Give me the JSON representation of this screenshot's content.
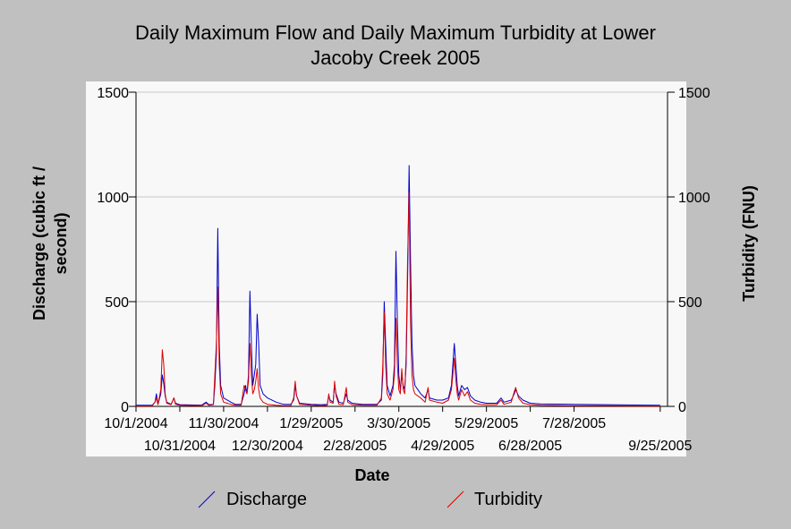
{
  "chart_data": {
    "type": "line",
    "title_lines": [
      "Daily Maximum Flow and Daily Maximum Turbidity at Lower",
      "Jacoby Creek 2005"
    ],
    "xlabel": "Date",
    "ylabel_left_lines": [
      "Discharge (cubic ft /",
      "second)"
    ],
    "ylabel_right": "Turbidity (FNU)",
    "x_start": "2004-10-01",
    "x_end": "2005-09-30",
    "x_ticks": [
      {
        "label": "10/1/2004",
        "date": "2004-10-01",
        "row": 0
      },
      {
        "label": "10/31/2004",
        "date": "2004-10-31",
        "row": 1
      },
      {
        "label": "11/30/2004",
        "date": "2004-11-30",
        "row": 0
      },
      {
        "label": "12/30/2004",
        "date": "2004-12-30",
        "row": 1
      },
      {
        "label": "1/29/2005",
        "date": "2005-01-29",
        "row": 0
      },
      {
        "label": "2/28/2005",
        "date": "2005-02-28",
        "row": 1
      },
      {
        "label": "3/30/2005",
        "date": "2005-03-30",
        "row": 0
      },
      {
        "label": "4/29/2005",
        "date": "2005-04-29",
        "row": 1
      },
      {
        "label": "5/29/2005",
        "date": "2005-05-29",
        "row": 0
      },
      {
        "label": "6/28/2005",
        "date": "2005-06-28",
        "row": 1
      },
      {
        "label": "7/28/2005",
        "date": "2005-07-28",
        "row": 0
      },
      {
        "label": "9/25/2005",
        "date": "2005-09-25",
        "row": 1
      }
    ],
    "y_left": {
      "min": 0,
      "max": 1500,
      "ticks": [
        0,
        500,
        1000,
        1500
      ]
    },
    "y_right": {
      "min": 0,
      "max": 1500,
      "ticks": [
        0,
        500,
        1000,
        1500
      ]
    },
    "grid": true,
    "legend_placement": "bottom",
    "series": [
      {
        "name": "Discharge",
        "color": "#0000cc",
        "axis": "left",
        "points": [
          [
            "2004-10-01",
            5
          ],
          [
            "2004-10-12",
            5
          ],
          [
            "2004-10-14",
            20
          ],
          [
            "2004-10-15",
            60
          ],
          [
            "2004-10-16",
            10
          ],
          [
            "2004-10-18",
            60
          ],
          [
            "2004-10-19",
            150
          ],
          [
            "2004-10-20",
            110
          ],
          [
            "2004-10-21",
            50
          ],
          [
            "2004-10-22",
            20
          ],
          [
            "2004-10-25",
            10
          ],
          [
            "2004-10-27",
            40
          ],
          [
            "2004-10-28",
            15
          ],
          [
            "2004-10-31",
            8
          ],
          [
            "2004-11-15",
            6
          ],
          [
            "2004-11-18",
            20
          ],
          [
            "2004-11-20",
            8
          ],
          [
            "2004-11-23",
            10
          ],
          [
            "2004-11-24",
            100
          ],
          [
            "2004-11-25",
            250
          ],
          [
            "2004-11-26",
            850
          ],
          [
            "2004-11-27",
            300
          ],
          [
            "2004-11-28",
            100
          ],
          [
            "2004-11-30",
            40
          ],
          [
            "2004-12-05",
            20
          ],
          [
            "2004-12-08",
            10
          ],
          [
            "2004-12-12",
            10
          ],
          [
            "2004-12-14",
            60
          ],
          [
            "2004-12-15",
            100
          ],
          [
            "2004-12-16",
            60
          ],
          [
            "2004-12-17",
            150
          ],
          [
            "2004-12-18",
            550
          ],
          [
            "2004-12-19",
            300
          ],
          [
            "2004-12-20",
            100
          ],
          [
            "2004-12-21",
            150
          ],
          [
            "2004-12-22",
            200
          ],
          [
            "2004-12-23",
            440
          ],
          [
            "2004-12-24",
            300
          ],
          [
            "2004-12-25",
            100
          ],
          [
            "2004-12-27",
            60
          ],
          [
            "2004-12-30",
            40
          ],
          [
            "2005-01-05",
            20
          ],
          [
            "2005-01-10",
            10
          ],
          [
            "2005-01-15",
            10
          ],
          [
            "2005-01-17",
            30
          ],
          [
            "2005-01-18",
            100
          ],
          [
            "2005-01-19",
            50
          ],
          [
            "2005-01-21",
            15
          ],
          [
            "2005-01-29",
            10
          ],
          [
            "2005-02-05",
            8
          ],
          [
            "2005-02-09",
            10
          ],
          [
            "2005-02-10",
            50
          ],
          [
            "2005-02-11",
            30
          ],
          [
            "2005-02-13",
            20
          ],
          [
            "2005-02-14",
            100
          ],
          [
            "2005-02-15",
            60
          ],
          [
            "2005-02-17",
            20
          ],
          [
            "2005-02-20",
            15
          ],
          [
            "2005-02-22",
            60
          ],
          [
            "2005-02-23",
            30
          ],
          [
            "2005-02-26",
            15
          ],
          [
            "2005-03-05",
            10
          ],
          [
            "2005-03-15",
            10
          ],
          [
            "2005-03-18",
            30
          ],
          [
            "2005-03-19",
            150
          ],
          [
            "2005-03-20",
            500
          ],
          [
            "2005-03-21",
            300
          ],
          [
            "2005-03-22",
            100
          ],
          [
            "2005-03-24",
            50
          ],
          [
            "2005-03-26",
            100
          ],
          [
            "2005-03-27",
            200
          ],
          [
            "2005-03-28",
            740
          ],
          [
            "2005-03-29",
            400
          ],
          [
            "2005-03-30",
            150
          ],
          [
            "2005-03-31",
            80
          ],
          [
            "2005-04-01",
            150
          ],
          [
            "2005-04-02",
            100
          ],
          [
            "2005-04-03",
            80
          ],
          [
            "2005-04-04",
            200
          ],
          [
            "2005-04-05",
            600
          ],
          [
            "2005-04-06",
            1150
          ],
          [
            "2005-04-07",
            700
          ],
          [
            "2005-04-08",
            300
          ],
          [
            "2005-04-09",
            150
          ],
          [
            "2005-04-10",
            100
          ],
          [
            "2005-04-12",
            80
          ],
          [
            "2005-04-14",
            60
          ],
          [
            "2005-04-17",
            40
          ],
          [
            "2005-04-19",
            80
          ],
          [
            "2005-04-20",
            40
          ],
          [
            "2005-04-25",
            30
          ],
          [
            "2005-04-29",
            30
          ],
          [
            "2005-05-03",
            40
          ],
          [
            "2005-05-05",
            100
          ],
          [
            "2005-05-06",
            200
          ],
          [
            "2005-05-07",
            300
          ],
          [
            "2005-05-08",
            200
          ],
          [
            "2005-05-09",
            100
          ],
          [
            "2005-05-10",
            50
          ],
          [
            "2005-05-12",
            100
          ],
          [
            "2005-05-14",
            80
          ],
          [
            "2005-05-16",
            90
          ],
          [
            "2005-05-18",
            50
          ],
          [
            "2005-05-21",
            30
          ],
          [
            "2005-05-25",
            20
          ],
          [
            "2005-05-29",
            15
          ],
          [
            "2005-06-05",
            15
          ],
          [
            "2005-06-08",
            40
          ],
          [
            "2005-06-10",
            20
          ],
          [
            "2005-06-15",
            30
          ],
          [
            "2005-06-17",
            60
          ],
          [
            "2005-06-18",
            80
          ],
          [
            "2005-06-20",
            50
          ],
          [
            "2005-06-23",
            30
          ],
          [
            "2005-06-28",
            15
          ],
          [
            "2005-07-05",
            12
          ],
          [
            "2005-07-28",
            10
          ],
          [
            "2005-08-20",
            8
          ],
          [
            "2005-09-15",
            6
          ],
          [
            "2005-09-25",
            5
          ]
        ]
      },
      {
        "name": "Turbidity",
        "color": "#dd0000",
        "axis": "right",
        "points": [
          [
            "2004-10-01",
            2
          ],
          [
            "2004-10-12",
            2
          ],
          [
            "2004-10-14",
            20
          ],
          [
            "2004-10-15",
            40
          ],
          [
            "2004-10-16",
            8
          ],
          [
            "2004-10-18",
            80
          ],
          [
            "2004-10-19",
            270
          ],
          [
            "2004-10-20",
            200
          ],
          [
            "2004-10-21",
            60
          ],
          [
            "2004-10-22",
            15
          ],
          [
            "2004-10-25",
            8
          ],
          [
            "2004-10-27",
            40
          ],
          [
            "2004-10-28",
            10
          ],
          [
            "2004-10-31",
            5
          ],
          [
            "2004-11-15",
            3
          ],
          [
            "2004-11-18",
            15
          ],
          [
            "2004-11-20",
            5
          ],
          [
            "2004-11-23",
            8
          ],
          [
            "2004-11-24",
            150
          ],
          [
            "2004-11-25",
            300
          ],
          [
            "2004-11-26",
            570
          ],
          [
            "2004-11-27",
            200
          ],
          [
            "2004-11-28",
            60
          ],
          [
            "2004-11-30",
            20
          ],
          [
            "2004-12-05",
            10
          ],
          [
            "2004-12-08",
            5
          ],
          [
            "2004-12-12",
            5
          ],
          [
            "2004-12-14",
            100
          ],
          [
            "2004-12-15",
            80
          ],
          [
            "2004-12-16",
            60
          ],
          [
            "2004-12-17",
            120
          ],
          [
            "2004-12-18",
            300
          ],
          [
            "2004-12-19",
            150
          ],
          [
            "2004-12-20",
            60
          ],
          [
            "2004-12-21",
            80
          ],
          [
            "2004-12-22",
            120
          ],
          [
            "2004-12-23",
            180
          ],
          [
            "2004-12-24",
            80
          ],
          [
            "2004-12-25",
            40
          ],
          [
            "2004-12-27",
            20
          ],
          [
            "2004-12-30",
            10
          ],
          [
            "2005-01-05",
            5
          ],
          [
            "2005-01-10",
            3
          ],
          [
            "2005-01-15",
            3
          ],
          [
            "2005-01-17",
            40
          ],
          [
            "2005-01-18",
            120
          ],
          [
            "2005-01-19",
            50
          ],
          [
            "2005-01-21",
            10
          ],
          [
            "2005-01-29",
            5
          ],
          [
            "2005-02-05",
            3
          ],
          [
            "2005-02-09",
            5
          ],
          [
            "2005-02-10",
            60
          ],
          [
            "2005-02-11",
            20
          ],
          [
            "2005-02-13",
            15
          ],
          [
            "2005-02-14",
            120
          ],
          [
            "2005-02-15",
            50
          ],
          [
            "2005-02-17",
            10
          ],
          [
            "2005-02-20",
            8
          ],
          [
            "2005-02-22",
            90
          ],
          [
            "2005-02-23",
            20
          ],
          [
            "2005-02-26",
            8
          ],
          [
            "2005-03-05",
            5
          ],
          [
            "2005-03-15",
            5
          ],
          [
            "2005-03-18",
            40
          ],
          [
            "2005-03-19",
            200
          ],
          [
            "2005-03-20",
            450
          ],
          [
            "2005-03-21",
            200
          ],
          [
            "2005-03-22",
            60
          ],
          [
            "2005-03-24",
            30
          ],
          [
            "2005-03-26",
            80
          ],
          [
            "2005-03-27",
            150
          ],
          [
            "2005-03-28",
            420
          ],
          [
            "2005-03-29",
            200
          ],
          [
            "2005-03-30",
            80
          ],
          [
            "2005-03-31",
            60
          ],
          [
            "2005-04-01",
            180
          ],
          [
            "2005-04-02",
            80
          ],
          [
            "2005-04-03",
            60
          ],
          [
            "2005-04-04",
            250
          ],
          [
            "2005-04-05",
            700
          ],
          [
            "2005-04-06",
            1020
          ],
          [
            "2005-04-07",
            400
          ],
          [
            "2005-04-08",
            150
          ],
          [
            "2005-04-09",
            80
          ],
          [
            "2005-04-10",
            60
          ],
          [
            "2005-04-12",
            50
          ],
          [
            "2005-04-14",
            40
          ],
          [
            "2005-04-17",
            20
          ],
          [
            "2005-04-19",
            90
          ],
          [
            "2005-04-20",
            30
          ],
          [
            "2005-04-25",
            20
          ],
          [
            "2005-04-29",
            15
          ],
          [
            "2005-05-03",
            30
          ],
          [
            "2005-05-05",
            80
          ],
          [
            "2005-05-06",
            150
          ],
          [
            "2005-05-07",
            230
          ],
          [
            "2005-05-08",
            130
          ],
          [
            "2005-05-09",
            60
          ],
          [
            "2005-05-10",
            30
          ],
          [
            "2005-05-12",
            80
          ],
          [
            "2005-05-14",
            50
          ],
          [
            "2005-05-16",
            70
          ],
          [
            "2005-05-18",
            30
          ],
          [
            "2005-05-21",
            15
          ],
          [
            "2005-05-25",
            10
          ],
          [
            "2005-05-29",
            8
          ],
          [
            "2005-06-05",
            8
          ],
          [
            "2005-06-08",
            30
          ],
          [
            "2005-06-10",
            10
          ],
          [
            "2005-06-15",
            20
          ],
          [
            "2005-06-17",
            70
          ],
          [
            "2005-06-18",
            90
          ],
          [
            "2005-06-20",
            40
          ],
          [
            "2005-06-23",
            15
          ],
          [
            "2005-06-28",
            8
          ],
          [
            "2005-07-05",
            5
          ],
          [
            "2005-07-28",
            3
          ],
          [
            "2005-08-20",
            3
          ],
          [
            "2005-09-15",
            2
          ],
          [
            "2005-09-25",
            2
          ]
        ]
      }
    ]
  }
}
